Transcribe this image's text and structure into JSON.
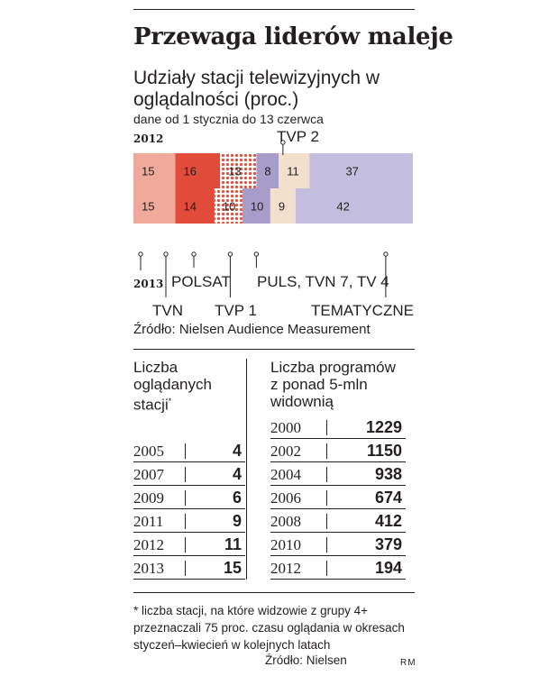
{
  "title": "Przewaga liderów maleje",
  "subtitle": "Udziały stacji telewizyjnych w oglądalności (proc.)",
  "dateline": "dane od 1 stycznia do 13 czerwca",
  "source": "Źródło: Nielsen Audience Measurement",
  "chart_data": {
    "type": "bar",
    "subtype": "100%-stacked-horizontal",
    "title": "Udziały stacji telewizyjnych w oglądalności (proc.)",
    "categories": [
      "2012",
      "2013"
    ],
    "series": [
      {
        "name": "TVN",
        "values": [
          15,
          15
        ],
        "color": "#f0a99a"
      },
      {
        "name": "POLSAT",
        "values": [
          16,
          14
        ],
        "color": "#e24b3a"
      },
      {
        "name": "TVP 1",
        "values": [
          13,
          10
        ],
        "color": "#e8735f",
        "pattern": "dots"
      },
      {
        "name": "PULS, TVN 7, TV 4",
        "values": [
          8,
          10
        ],
        "color": "#a89ccb"
      },
      {
        "name": "TVP 2",
        "values": [
          11,
          9
        ],
        "color": "#f2e0cc"
      },
      {
        "name": "TEMATYCZNE",
        "values": [
          37,
          42
        ],
        "color": "#c4bfe0"
      }
    ],
    "labels": {
      "year_top": "2012",
      "year_bottom": "2013"
    }
  },
  "stations": {
    "header": "Liczba oglądanych stacji",
    "footnote_mark": "*",
    "rows": [
      {
        "year": "2005",
        "value": "4"
      },
      {
        "year": "2007",
        "value": "4"
      },
      {
        "year": "2009",
        "value": "6"
      },
      {
        "year": "2011",
        "value": "9"
      },
      {
        "year": "2012",
        "value": "11"
      },
      {
        "year": "2013",
        "value": "15"
      }
    ]
  },
  "programs": {
    "header": "Liczba programów z ponad 5-mln widownią",
    "rows": [
      {
        "year": "2000",
        "value": "1229"
      },
      {
        "year": "2002",
        "value": "1150"
      },
      {
        "year": "2004",
        "value": "938"
      },
      {
        "year": "2006",
        "value": "674"
      },
      {
        "year": "2008",
        "value": "412"
      },
      {
        "year": "2010",
        "value": "379"
      },
      {
        "year": "2012",
        "value": "194"
      }
    ]
  },
  "note": "* liczba stacji, na które widzowie z grupy 4+ przeznaczali 75 proc. czasu oglądania w okresach styczeń–kwiecień w kolejnych latach",
  "source2": "Źródło: Nielsen",
  "credit": "RM"
}
